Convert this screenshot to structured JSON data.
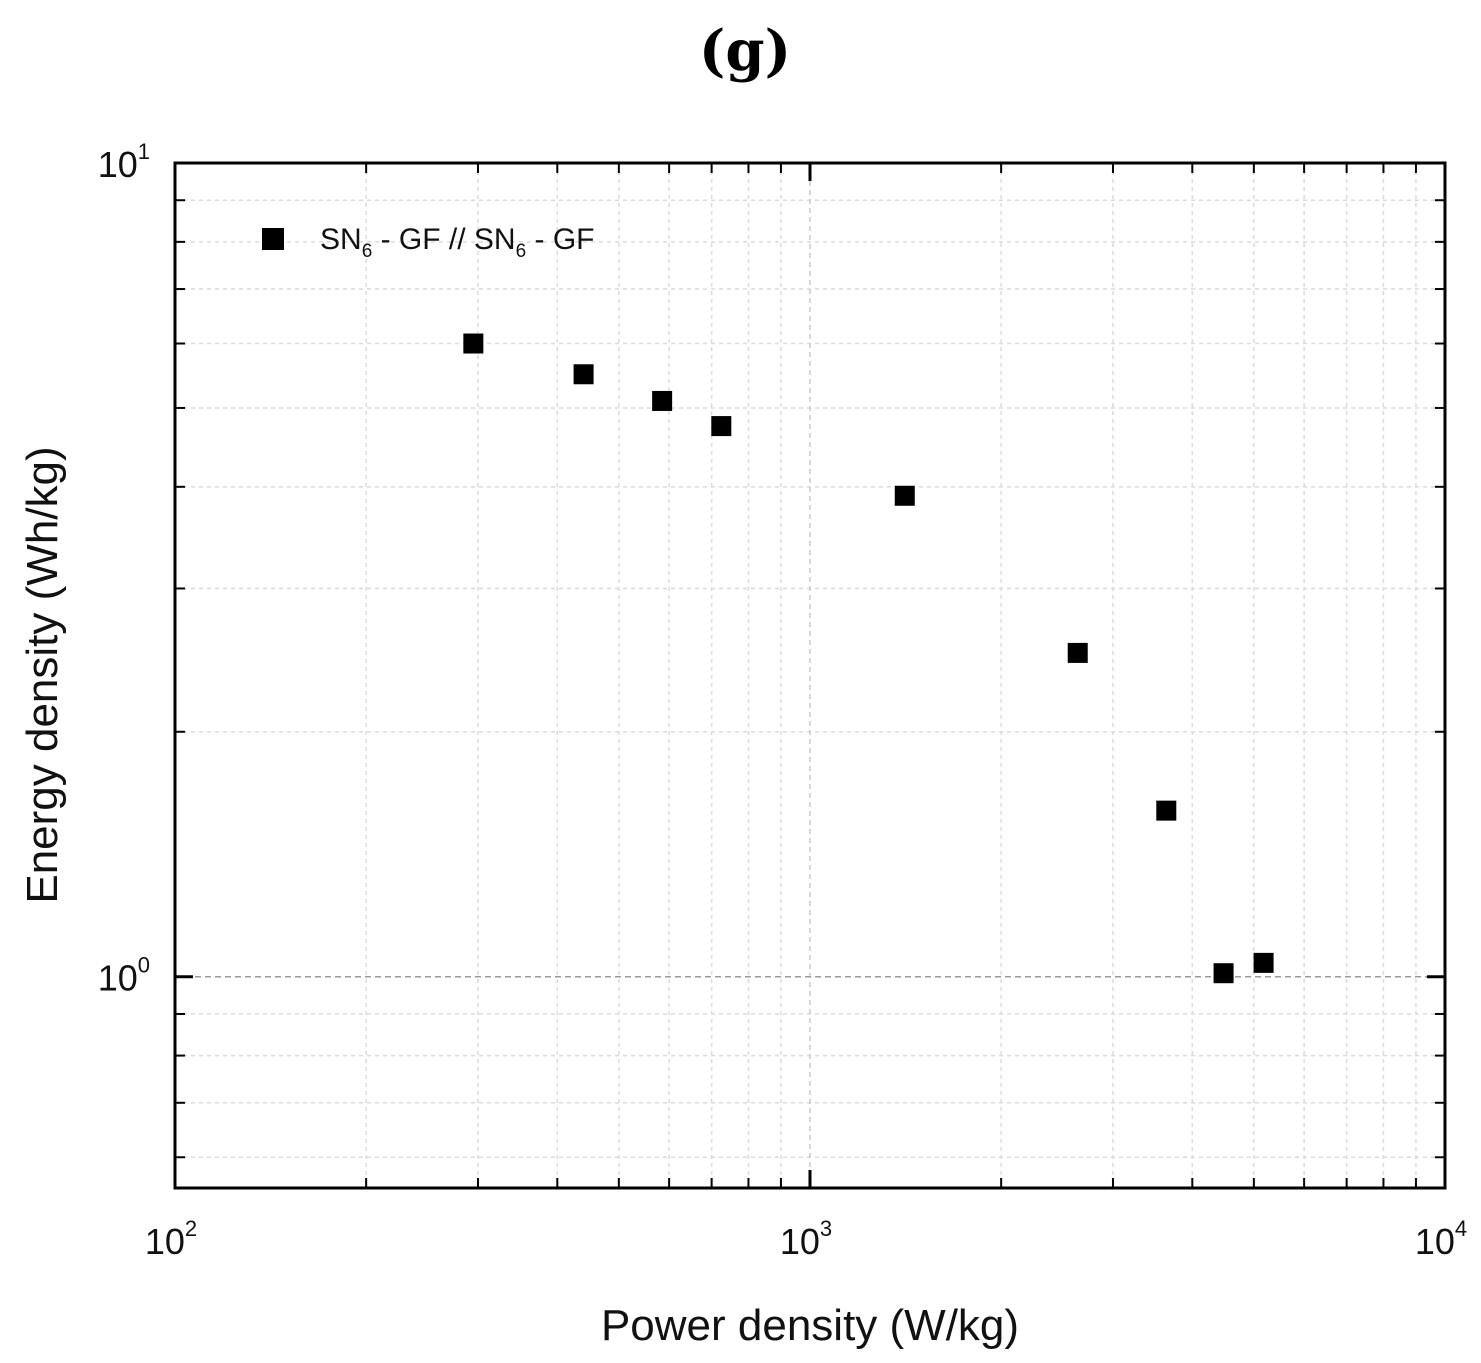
{
  "chart_data": {
    "type": "scatter",
    "panel_label": "(g)",
    "xlabel": "Power density (W/kg)",
    "ylabel": "Energy density (Wh/kg)",
    "x_scale": "log",
    "y_scale": "log",
    "xlim": [
      100,
      10000
    ],
    "ylim": [
      0.55,
      10
    ],
    "x_ticks": [
      {
        "base": "10",
        "exp": "2",
        "value": 100
      },
      {
        "base": "10",
        "exp": "3",
        "value": 1000
      },
      {
        "base": "10",
        "exp": "4",
        "value": 10000
      }
    ],
    "y_ticks": [
      {
        "base": "10",
        "exp": "0",
        "value": 1
      },
      {
        "base": "10",
        "exp": "1",
        "value": 10
      }
    ],
    "grid": true,
    "legend_position": "top-left",
    "series": [
      {
        "name": "SN6 - GF // SN6 - GF",
        "legend_parts": [
          "SN",
          "6",
          " - GF // SN",
          "6",
          " - GF"
        ],
        "marker": "square",
        "color": "#000000",
        "x": [
          295,
          440,
          585,
          725,
          1410,
          2640,
          3640,
          4480,
          5180
        ],
        "y": [
          6.0,
          5.5,
          5.1,
          4.75,
          3.9,
          2.5,
          1.6,
          1.01,
          1.04
        ]
      }
    ]
  }
}
